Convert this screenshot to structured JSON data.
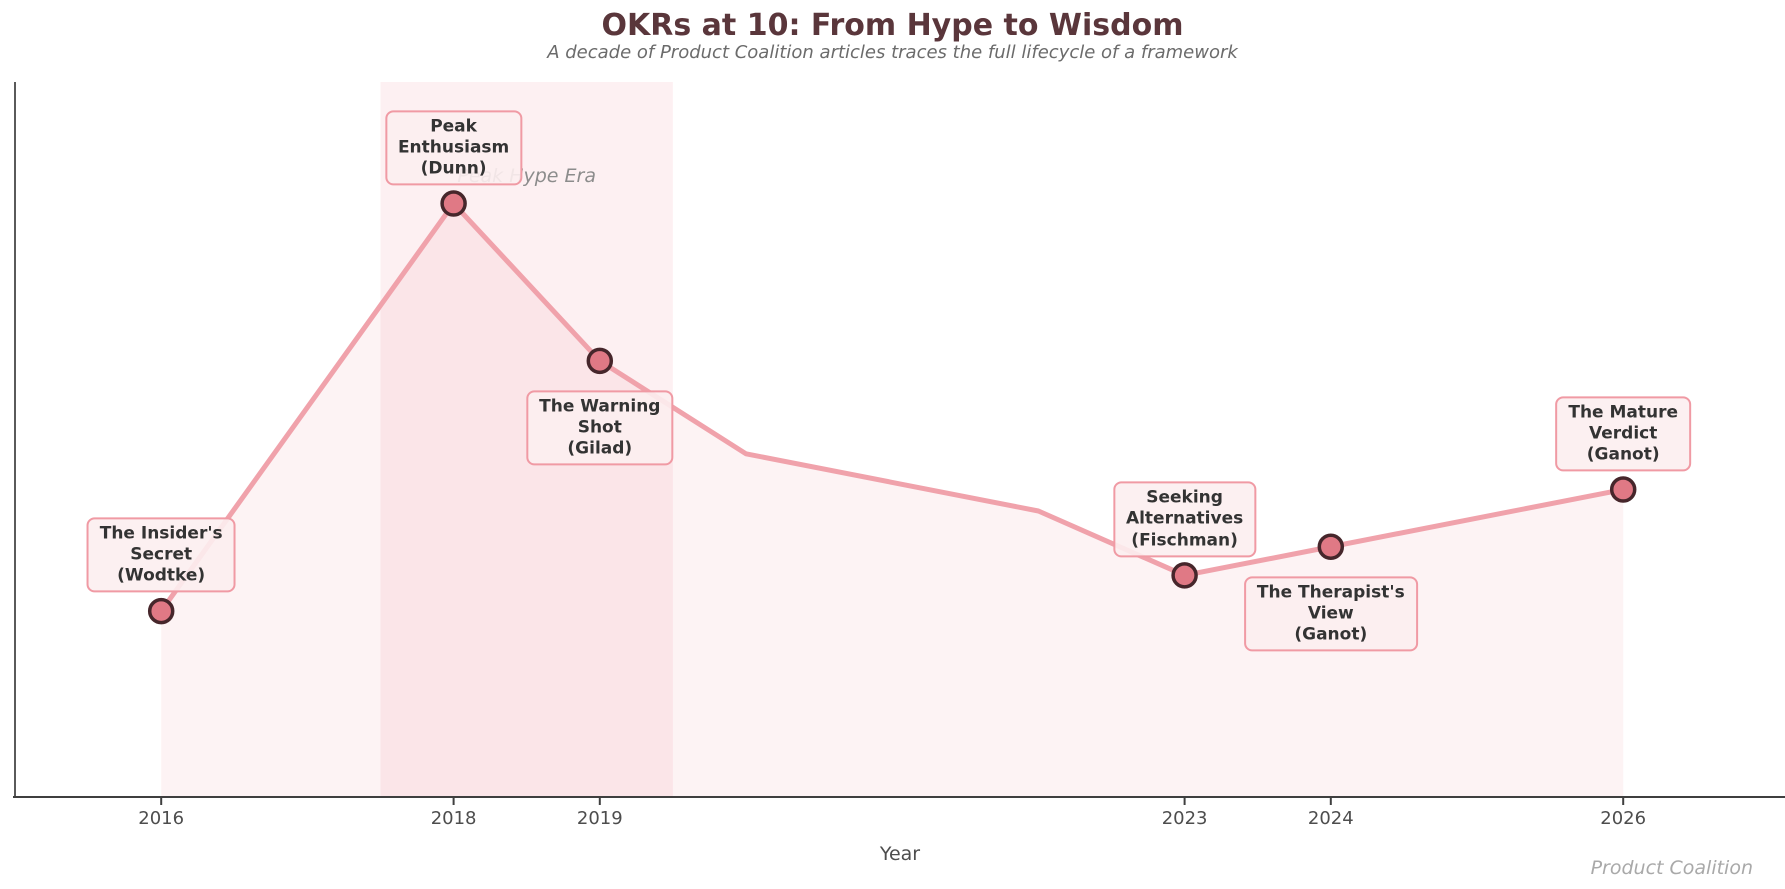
{
  "footer": {
    "credit": "Product Coalition"
  },
  "chart_data": {
    "type": "area",
    "title": "OKRs at 10: From Hype to Wisdom",
    "subtitle": "A decade of Product Coalition articles traces the full lifecycle of a framework",
    "xlabel": "Year",
    "ylabel": "",
    "xlim": [
      2015,
      2027.1
    ],
    "ylim": [
      0,
      100
    ],
    "grid": false,
    "legend": "none",
    "x": [
      2016,
      2018,
      2019,
      2020,
      2021,
      2022,
      2023,
      2024,
      2026
    ],
    "values": [
      26,
      83,
      61,
      48,
      44,
      40,
      31,
      35,
      43
    ],
    "xticks": [
      2016,
      2018,
      2019,
      2023,
      2024,
      2026
    ],
    "band": {
      "label": "Peak Hype Era",
      "x_start": 2017.5,
      "x_end": 2019.5,
      "label_x": 2018.5,
      "label_y": 87
    },
    "annotations": [
      {
        "year": 2016,
        "value": 26,
        "label": "The Insider's\nSecret\n(Wodtke)",
        "placement": "above"
      },
      {
        "year": 2018,
        "value": 83,
        "label": "Peak\nEnthusiasm\n(Dunn)",
        "placement": "above"
      },
      {
        "year": 2019,
        "value": 61,
        "label": "The Warning\nShot\n(Gilad)",
        "placement": "below"
      },
      {
        "year": 2023,
        "value": 31,
        "label": "Seeking\nAlternatives\n(Fischman)",
        "placement": "above"
      },
      {
        "year": 2024,
        "value": 35,
        "label": "The Therapist's\nView\n(Ganot)",
        "placement": "below"
      },
      {
        "year": 2026,
        "value": 43,
        "label": "The Mature\nVerdict\n(Ganot)",
        "placement": "above"
      }
    ],
    "colors": {
      "title": "#5A363B",
      "subtitle": "#6B6B6B",
      "line": "#F0A2AB",
      "area_fill": "rgba(240,135,145,0.10)",
      "band_fill": "rgba(240,135,145,0.12)",
      "band_label": "#8C8C8C",
      "marker_fill": "#E07985",
      "marker_edge": "#46262B",
      "annotation_bg": "#FCEEF0",
      "annotation_border": "#F09AA4",
      "annotation_text": "#333333",
      "axis": "#3F3F3F",
      "tick_label": "#4D4D4D",
      "credit": "#A9A9A9"
    }
  }
}
